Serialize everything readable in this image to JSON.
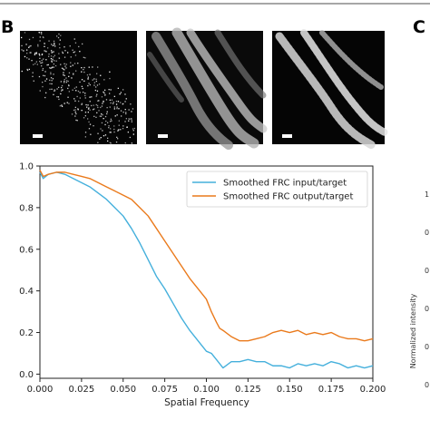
{
  "panels": {
    "b_letter": "B",
    "c_letter": "C"
  },
  "side_panel": {
    "ylabel": "Normalized intensity",
    "ticks": [
      "1",
      "0",
      "0",
      "0",
      "0",
      "0"
    ]
  },
  "colors": {
    "series_input": "#45b0dc",
    "series_output": "#ea7a1c",
    "top_rule": "#8a8a8a"
  },
  "chart_data": {
    "type": "line",
    "title": "",
    "xlabel": "Spatial Frequency",
    "ylabel": "",
    "xlim": [
      0.0,
      0.2
    ],
    "ylim": [
      -0.02,
      1.0
    ],
    "xticks": [
      "0.000",
      "0.025",
      "0.050",
      "0.075",
      "0.100",
      "0.125",
      "0.150",
      "0.175",
      "0.200"
    ],
    "yticks": [
      "0.0",
      "0.2",
      "0.4",
      "0.6",
      "0.8",
      "1.0"
    ],
    "legend_position": "top-right",
    "grid": false,
    "series": [
      {
        "name": "Smoothed FRC input/target",
        "color": "#45b0dc",
        "x": [
          0.0,
          0.002,
          0.005,
          0.01,
          0.015,
          0.02,
          0.025,
          0.03,
          0.035,
          0.04,
          0.045,
          0.05,
          0.055,
          0.06,
          0.065,
          0.07,
          0.075,
          0.08,
          0.085,
          0.09,
          0.095,
          0.1,
          0.103,
          0.106,
          0.108,
          0.11,
          0.115,
          0.12,
          0.125,
          0.13,
          0.135,
          0.14,
          0.145,
          0.15,
          0.155,
          0.16,
          0.165,
          0.17,
          0.175,
          0.18,
          0.185,
          0.19,
          0.195,
          0.2
        ],
        "y": [
          0.97,
          0.94,
          0.96,
          0.97,
          0.96,
          0.94,
          0.92,
          0.9,
          0.87,
          0.84,
          0.8,
          0.76,
          0.7,
          0.63,
          0.55,
          0.47,
          0.41,
          0.34,
          0.27,
          0.21,
          0.16,
          0.11,
          0.1,
          0.07,
          0.05,
          0.03,
          0.06,
          0.06,
          0.07,
          0.06,
          0.06,
          0.04,
          0.04,
          0.03,
          0.05,
          0.04,
          0.05,
          0.04,
          0.06,
          0.05,
          0.03,
          0.04,
          0.03,
          0.04
        ]
      },
      {
        "name": "Smoothed FRC output/target",
        "color": "#ea7a1c",
        "x": [
          0.0,
          0.002,
          0.005,
          0.01,
          0.015,
          0.02,
          0.025,
          0.03,
          0.035,
          0.04,
          0.045,
          0.05,
          0.055,
          0.06,
          0.065,
          0.07,
          0.075,
          0.08,
          0.085,
          0.09,
          0.095,
          0.1,
          0.103,
          0.106,
          0.108,
          0.11,
          0.115,
          0.12,
          0.125,
          0.13,
          0.135,
          0.14,
          0.145,
          0.15,
          0.155,
          0.16,
          0.165,
          0.17,
          0.175,
          0.18,
          0.185,
          0.19,
          0.195,
          0.2
        ],
        "y": [
          0.98,
          0.95,
          0.96,
          0.97,
          0.97,
          0.96,
          0.95,
          0.94,
          0.92,
          0.9,
          0.88,
          0.86,
          0.84,
          0.8,
          0.76,
          0.7,
          0.64,
          0.58,
          0.52,
          0.46,
          0.41,
          0.36,
          0.3,
          0.25,
          0.22,
          0.21,
          0.18,
          0.16,
          0.16,
          0.17,
          0.18,
          0.2,
          0.21,
          0.2,
          0.21,
          0.19,
          0.2,
          0.19,
          0.2,
          0.18,
          0.17,
          0.17,
          0.16,
          0.17
        ]
      }
    ]
  }
}
